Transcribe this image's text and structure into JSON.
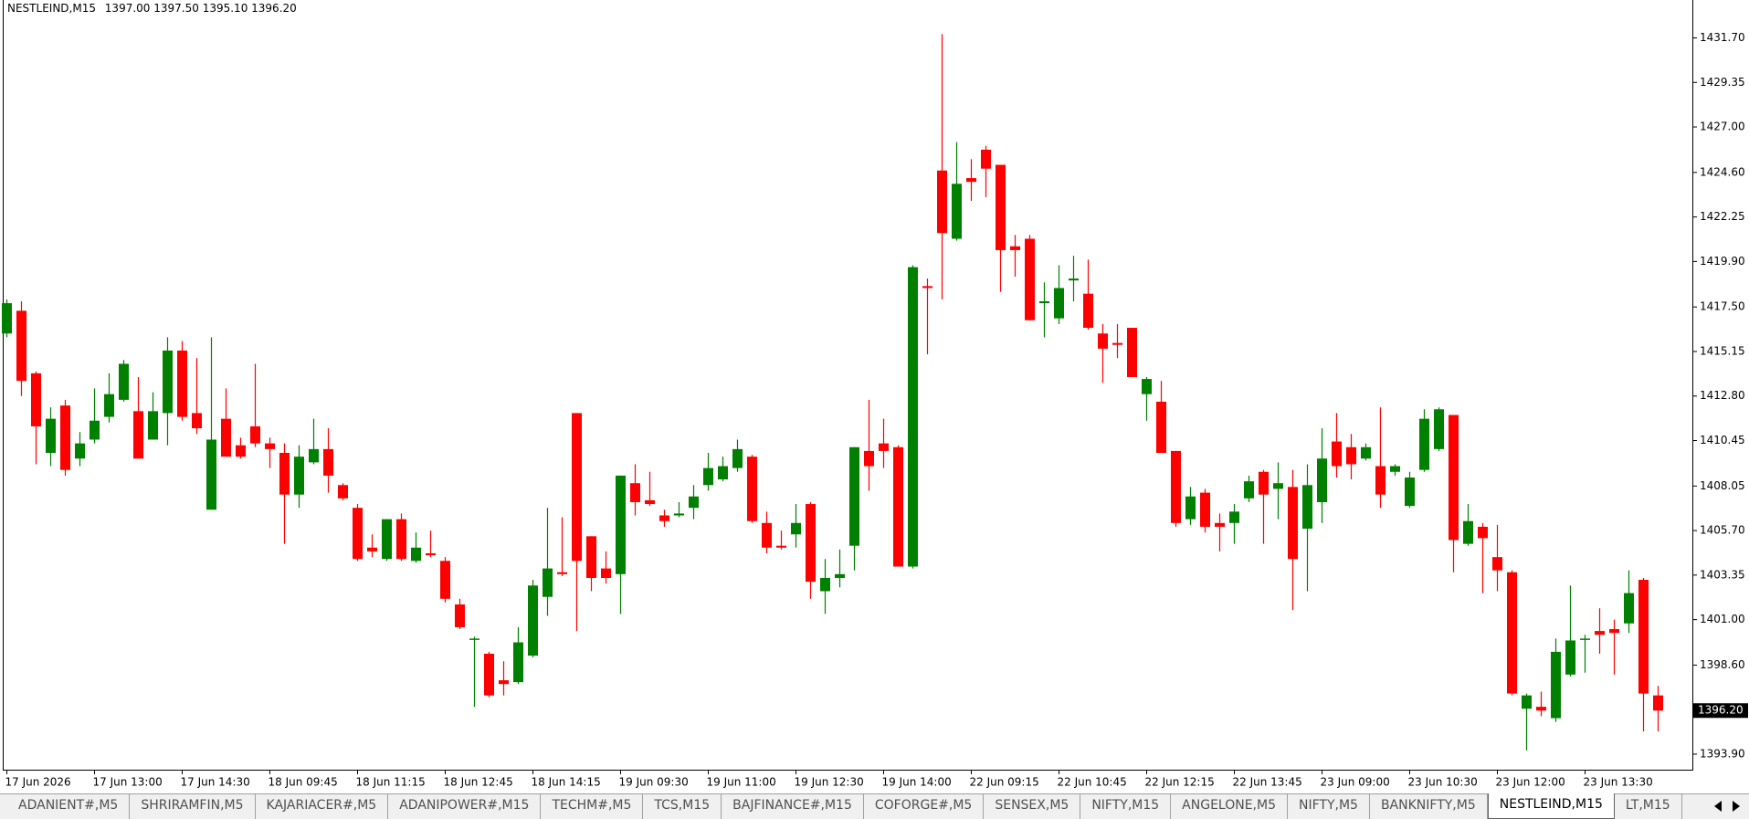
{
  "chart_data": {
    "type": "candlestick",
    "symbol": "NESTLEIND,M15",
    "quote": [
      "1397.00",
      "1397.50",
      "1395.10",
      "1396.20"
    ],
    "current_price": {
      "value": 1396.2,
      "label": "1396.20"
    },
    "up_color": "#008000",
    "down_color": "#ff0000",
    "ylim": [
      1393.08,
      1433.7
    ],
    "yticks": [
      {
        "value": 1431.7,
        "label": "1431.70"
      },
      {
        "value": 1429.35,
        "label": "1429.35"
      },
      {
        "value": 1427.0,
        "label": "1427.00"
      },
      {
        "value": 1424.6,
        "label": "1424.60"
      },
      {
        "value": 1422.25,
        "label": "1422.25"
      },
      {
        "value": 1419.9,
        "label": "1419.90"
      },
      {
        "value": 1417.5,
        "label": "1417.50"
      },
      {
        "value": 1415.15,
        "label": "1415.15"
      },
      {
        "value": 1412.8,
        "label": "1412.80"
      },
      {
        "value": 1410.45,
        "label": "1410.45"
      },
      {
        "value": 1408.05,
        "label": "1408.05"
      },
      {
        "value": 1405.7,
        "label": "1405.70"
      },
      {
        "value": 1403.35,
        "label": "1403.35"
      },
      {
        "value": 1401.0,
        "label": "1401.00"
      },
      {
        "value": 1398.6,
        "label": "1398.60"
      },
      {
        "value": 1393.9,
        "label": "1393.90"
      }
    ],
    "categories": [
      "17 Jun 2026",
      null,
      null,
      null,
      null,
      null,
      "17 Jun 13:00",
      null,
      null,
      null,
      null,
      null,
      "17 Jun 14:30",
      null,
      null,
      null,
      null,
      null,
      "18 Jun 09:45",
      null,
      null,
      null,
      null,
      null,
      "18 Jun 11:15",
      null,
      null,
      null,
      null,
      null,
      "18 Jun 12:45",
      null,
      null,
      null,
      null,
      null,
      "18 Jun 14:15",
      null,
      null,
      null,
      null,
      null,
      "19 Jun 09:30",
      null,
      null,
      null,
      null,
      null,
      "19 Jun 11:00",
      null,
      null,
      null,
      null,
      null,
      "19 Jun 12:30",
      null,
      null,
      null,
      null,
      null,
      "19 Jun 14:00",
      null,
      null,
      null,
      null,
      null,
      "22 Jun 09:15",
      null,
      null,
      null,
      null,
      null,
      "22 Jun 10:45",
      null,
      null,
      null,
      null,
      null,
      "22 Jun 12:15",
      null,
      null,
      null,
      null,
      null,
      "22 Jun 13:45",
      null,
      null,
      null,
      null,
      null,
      "23 Jun 09:00",
      null,
      null,
      null,
      null,
      null,
      "23 Jun 10:30",
      null,
      null,
      null,
      null,
      null,
      "23 Jun 12:00",
      null,
      null,
      null,
      null,
      null,
      "23 Jun 13:30",
      null,
      null,
      null,
      null,
      null
    ],
    "open": [
      1416.1,
      1417.3,
      1414.0,
      1409.8,
      1412.3,
      1409.5,
      1410.5,
      1411.7,
      1412.6,
      1412.0,
      1410.5,
      1411.9,
      1415.2,
      1411.9,
      1406.8,
      1411.6,
      1410.2,
      1411.2,
      1410.3,
      1409.8,
      1407.6,
      1409.3,
      1410.0,
      1408.1,
      1406.9,
      1404.8,
      1404.2,
      1406.3,
      1404.1,
      1404.5,
      1404.1,
      1401.8,
      1400.0,
      1399.2,
      1397.8,
      1397.7,
      1399.1,
      1402.2,
      1403.5,
      1411.9,
      1405.4,
      1403.7,
      1403.4,
      1408.2,
      1407.3,
      1406.5,
      1406.5,
      1406.9,
      1408.1,
      1408.4,
      1409.0,
      1409.6,
      1406.1,
      1404.9,
      1405.5,
      1407.1,
      1402.5,
      1403.2,
      1404.9,
      1409.9,
      1410.3,
      1410.1,
      1403.8,
      1418.6,
      1424.7,
      1421.1,
      1424.3,
      1425.8,
      1425.0,
      1420.7,
      1421.1,
      1417.7,
      1416.9,
      1418.9,
      1418.2,
      1416.1,
      1415.6,
      1416.4,
      1412.9,
      1412.5,
      1409.9,
      1406.3,
      1407.7,
      1406.1,
      1406.1,
      1407.4,
      1408.8,
      1407.9,
      1408.0,
      1405.8,
      1407.2,
      1410.4,
      1410.1,
      1409.5,
      1409.1,
      1408.8,
      1407.0,
      1408.9,
      1410.0,
      1411.8,
      1405.0,
      1405.9,
      1404.3,
      1403.5,
      1396.3,
      1396.4,
      1395.8,
      1398.1,
      1400.0,
      1400.4,
      1400.5,
      1400.8,
      1403.1,
      1397.0
    ],
    "high": [
      1417.9,
      1417.8,
      1414.1,
      1412.2,
      1412.6,
      1410.9,
      1413.2,
      1414.0,
      1414.7,
      1413.8,
      1413.0,
      1415.9,
      1415.7,
      1414.8,
      1415.9,
      1413.2,
      1410.6,
      1414.5,
      1410.6,
      1410.3,
      1410.2,
      1411.6,
      1411.1,
      1408.2,
      1407.1,
      1405.5,
      1406.3,
      1406.6,
      1405.6,
      1405.7,
      1404.3,
      1402.1,
      1400.1,
      1399.3,
      1398.8,
      1400.6,
      1403.1,
      1406.9,
      1406.4,
      1411.9,
      1405.4,
      1404.6,
      1408.6,
      1409.2,
      1408.8,
      1406.8,
      1407.2,
      1408.1,
      1409.8,
      1409.6,
      1410.5,
      1409.7,
      1406.7,
      1405.7,
      1407.1,
      1407.2,
      1404.2,
      1404.7,
      1410.1,
      1412.6,
      1411.6,
      1410.2,
      1419.7,
      1419.0,
      1431.9,
      1426.2,
      1425.3,
      1426.0,
      1425.0,
      1421.3,
      1421.3,
      1418.8,
      1419.7,
      1420.2,
      1420.0,
      1416.6,
      1416.6,
      1416.4,
      1413.8,
      1413.6,
      1409.9,
      1408.0,
      1407.9,
      1406.6,
      1407.1,
      1408.6,
      1408.9,
      1409.3,
      1408.9,
      1409.2,
      1411.1,
      1411.9,
      1410.8,
      1410.3,
      1412.2,
      1409.2,
      1408.8,
      1412.1,
      1412.2,
      1411.8,
      1407.1,
      1406.1,
      1406.0,
      1403.6,
      1397.1,
      1397.2,
      1400.0,
      1402.8,
      1400.2,
      1401.6,
      1401.0,
      1403.6,
      1403.2,
      1397.5
    ],
    "low": [
      1415.9,
      1412.8,
      1409.2,
      1409.1,
      1408.6,
      1409.1,
      1410.3,
      1411.4,
      1412.5,
      1409.5,
      1410.5,
      1410.2,
      1411.5,
      1410.8,
      1406.8,
      1409.6,
      1409.5,
      1410.1,
      1409.0,
      1405.0,
      1406.9,
      1409.2,
      1407.7,
      1407.3,
      1404.1,
      1404.3,
      1404.1,
      1404.1,
      1404.0,
      1404.3,
      1401.9,
      1400.5,
      1396.4,
      1396.9,
      1397.0,
      1397.6,
      1399.0,
      1401.2,
      1403.3,
      1400.4,
      1402.5,
      1402.9,
      1401.3,
      1406.5,
      1407.0,
      1405.9,
      1406.4,
      1406.3,
      1407.8,
      1408.3,
      1408.8,
      1406.1,
      1404.5,
      1404.7,
      1404.8,
      1402.1,
      1401.3,
      1402.7,
      1403.6,
      1407.8,
      1409.0,
      1403.8,
      1403.7,
      1415.0,
      1417.9,
      1421.0,
      1423.1,
      1423.3,
      1418.3,
      1419.1,
      1416.8,
      1415.9,
      1416.6,
      1417.8,
      1416.3,
      1413.5,
      1414.8,
      1413.8,
      1411.5,
      1409.8,
      1405.9,
      1406.0,
      1405.6,
      1404.6,
      1405.0,
      1407.2,
      1405.0,
      1406.3,
      1401.5,
      1402.5,
      1406.1,
      1408.5,
      1408.4,
      1409.4,
      1406.9,
      1408.6,
      1406.9,
      1408.8,
      1409.9,
      1403.5,
      1404.9,
      1402.4,
      1402.5,
      1397.0,
      1394.1,
      1395.9,
      1395.6,
      1398.0,
      1398.2,
      1399.2,
      1398.1,
      1400.3,
      1395.1,
      1395.1
    ],
    "close": [
      1417.7,
      1413.6,
      1411.2,
      1411.6,
      1408.9,
      1410.3,
      1411.5,
      1412.9,
      1414.5,
      1409.5,
      1412.0,
      1415.2,
      1411.7,
      1411.1,
      1410.5,
      1409.6,
      1409.6,
      1410.3,
      1410.0,
      1407.6,
      1409.6,
      1410.0,
      1408.6,
      1407.4,
      1404.2,
      1404.6,
      1406.3,
      1404.2,
      1404.8,
      1404.4,
      1402.1,
      1400.6,
      1400.0,
      1397.0,
      1397.6,
      1399.8,
      1402.8,
      1403.7,
      1403.4,
      1404.1,
      1403.2,
      1403.2,
      1408.6,
      1407.2,
      1407.1,
      1406.2,
      1406.6,
      1407.5,
      1409.0,
      1409.1,
      1410.0,
      1406.2,
      1404.8,
      1404.8,
      1406.1,
      1403.0,
      1403.2,
      1403.4,
      1410.1,
      1409.1,
      1409.9,
      1403.8,
      1419.6,
      1418.5,
      1421.4,
      1424.0,
      1424.1,
      1424.8,
      1420.5,
      1420.5,
      1416.8,
      1417.8,
      1418.5,
      1419.0,
      1416.4,
      1415.3,
      1415.5,
      1413.8,
      1413.7,
      1409.8,
      1406.1,
      1407.5,
      1405.9,
      1405.9,
      1406.7,
      1408.3,
      1407.6,
      1408.2,
      1404.2,
      1408.1,
      1409.5,
      1409.1,
      1409.2,
      1410.1,
      1407.6,
      1409.1,
      1408.5,
      1411.6,
      1412.1,
      1405.2,
      1406.2,
      1405.3,
      1403.6,
      1397.1,
      1397.0,
      1396.2,
      1399.3,
      1399.9,
      1400.0,
      1400.2,
      1400.3,
      1402.4,
      1397.1,
      1396.2
    ],
    "tabs": [
      "ADANIENT#,M5",
      "SHRIRAMFIN,M5",
      "KAJARIACER#,M5",
      "ADANIPOWER#,M15",
      "TECHM#,M5",
      "TCS,M15",
      "BAJFINANCE#,M15",
      "COFORGE#,M5",
      "SENSEX,M5",
      "NIFTY,M15",
      "ANGELONE,M5",
      "NIFTY,M5",
      "BANKNIFTY,M5",
      "NESTLEIND,M15",
      "LT,M15"
    ],
    "active_tab": 13
  }
}
